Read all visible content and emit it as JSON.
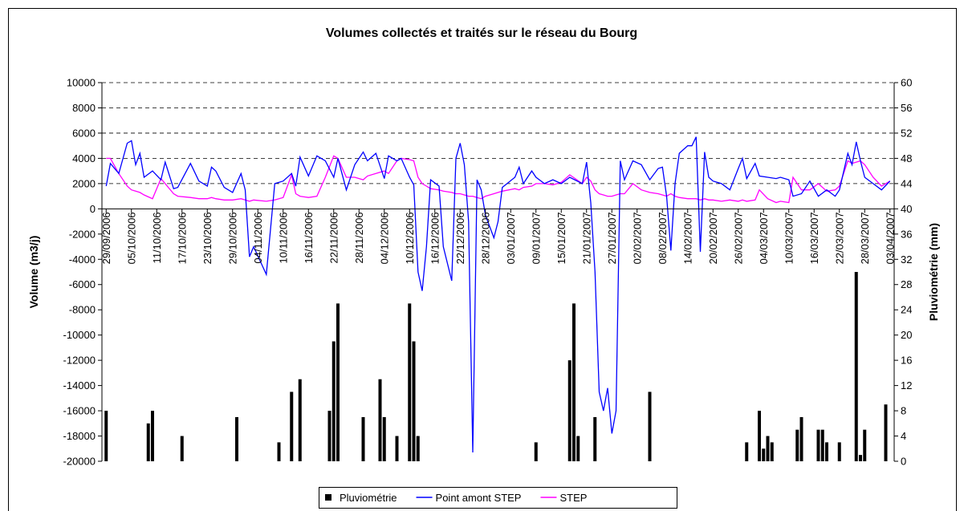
{
  "chart_data": {
    "type": "combo",
    "title": "Volumes collectés et traités sur le réseau du Bourg",
    "y_label": "Volume (m3/j)",
    "y2_label": "Pluviométrie (mm)",
    "x": [
      "29/09/2006",
      "30/09/2006",
      "02/10/2006",
      "04/10/2006",
      "05/10/2006",
      "06/10/2006",
      "07/10/2006",
      "08/10/2006",
      "10/10/2006",
      "12/10/2006",
      "13/10/2006",
      "15/10/2006",
      "16/10/2006",
      "19/10/2006",
      "21/10/2006",
      "23/10/2006",
      "24/10/2006",
      "25/10/2006",
      "27/10/2006",
      "29/10/2006",
      "31/10/2006",
      "01/11/2006",
      "02/11/2006",
      "03/11/2006",
      "06/11/2006",
      "08/11/2006",
      "10/11/2006",
      "12/11/2006",
      "13/11/2006",
      "14/11/2006",
      "16/11/2006",
      "18/11/2006",
      "20/11/2006",
      "22/11/2006",
      "23/11/2006",
      "25/11/2006",
      "27/11/2006",
      "29/11/2006",
      "30/11/2006",
      "02/12/2006",
      "04/12/2006",
      "05/12/2006",
      "07/12/2006",
      "08/12/2006",
      "10/12/2006",
      "11/12/2006",
      "12/12/2006",
      "13/12/2006",
      "14/12/2006",
      "15/12/2006",
      "17/12/2006",
      "18/12/2006",
      "20/12/2006",
      "21/12/2006",
      "22/12/2006",
      "23/12/2006",
      "24/12/2006",
      "25/12/2006",
      "26/12/2006",
      "27/12/2006",
      "28/12/2006",
      "30/12/2006",
      "31/12/2006",
      "01/01/2007",
      "04/01/2007",
      "05/01/2007",
      "06/01/2007",
      "08/01/2007",
      "09/01/2007",
      "11/01/2007",
      "13/01/2007",
      "15/01/2007",
      "17/01/2007",
      "20/01/2007",
      "21/01/2007",
      "22/01/2007",
      "23/01/2007",
      "24/01/2007",
      "25/01/2007",
      "26/01/2007",
      "27/01/2007",
      "28/01/2007",
      "29/01/2007",
      "30/01/2007",
      "01/02/2007",
      "03/02/2007",
      "05/02/2007",
      "07/02/2007",
      "08/02/2007",
      "09/02/2007",
      "10/02/2007",
      "11/02/2007",
      "12/02/2007",
      "14/02/2007",
      "15/02/2007",
      "16/02/2007",
      "17/02/2007",
      "18/02/2007",
      "19/02/2007",
      "20/02/2007",
      "22/02/2007",
      "24/02/2007",
      "26/02/2007",
      "27/02/2007",
      "28/02/2007",
      "02/03/2007",
      "03/03/2007",
      "05/03/2007",
      "07/03/2007",
      "08/03/2007",
      "10/03/2007",
      "11/03/2007",
      "13/03/2007",
      "15/03/2007",
      "17/03/2007",
      "19/03/2007",
      "21/03/2007",
      "22/03/2007",
      "24/03/2007",
      "25/03/2007",
      "26/03/2007",
      "27/03/2007",
      "28/03/2007",
      "30/03/2007",
      "01/04/2007",
      "03/04/2007"
    ],
    "series": [
      {
        "name": "Pluviométrie",
        "type": "bar",
        "axis": "y2",
        "color": "#000000",
        "x": [
          "29/09/2006",
          "09/10/2006",
          "10/10/2006",
          "17/10/2006",
          "30/10/2006",
          "09/11/2006",
          "12/11/2006",
          "14/11/2006",
          "21/11/2006",
          "22/11/2006",
          "23/11/2006",
          "29/11/2006",
          "03/12/2006",
          "04/12/2006",
          "07/12/2006",
          "10/12/2006",
          "11/12/2006",
          "12/12/2006",
          "09/01/2007",
          "17/01/2007",
          "18/01/2007",
          "19/01/2007",
          "23/01/2007",
          "05/02/2007",
          "28/02/2007",
          "03/03/2007",
          "04/03/2007",
          "05/03/2007",
          "06/03/2007",
          "12/03/2007",
          "13/03/2007",
          "17/03/2007",
          "18/03/2007",
          "19/03/2007",
          "22/03/2007",
          "26/03/2007",
          "27/03/2007",
          "28/03/2007",
          "02/04/2007"
        ],
        "values": [
          8,
          6,
          8,
          4,
          7,
          3,
          11,
          13,
          8,
          19,
          25,
          7,
          13,
          7,
          4,
          25,
          19,
          4,
          3,
          16,
          25,
          4,
          7,
          11,
          3,
          8,
          2,
          4,
          3,
          5,
          7,
          5,
          5,
          3,
          3,
          30,
          1,
          5,
          9
        ]
      },
      {
        "name": "Point amont STEP",
        "type": "line",
        "color": "#0000ff",
        "values": [
          1800,
          3600,
          2800,
          5200,
          5400,
          3500,
          4400,
          2500,
          3000,
          2300,
          3700,
          1600,
          1700,
          3600,
          2200,
          1800,
          3300,
          3000,
          1700,
          1300,
          2800,
          1500,
          -3800,
          -3000,
          -5200,
          2000,
          2200,
          2800,
          1800,
          4100,
          2600,
          4200,
          3800,
          2500,
          4000,
          1500,
          3500,
          4500,
          3800,
          4400,
          2400,
          4200,
          3800,
          4000,
          2500,
          1900,
          -5000,
          -6500,
          -3000,
          2300,
          1800,
          -3000,
          -5700,
          4000,
          5200,
          3500,
          -1000,
          -19300,
          2300,
          1500,
          -500,
          -2300,
          -1000,
          1700,
          2500,
          3300,
          2000,
          3000,
          2500,
          2000,
          2300,
          2000,
          2500,
          2000,
          3700,
          500,
          -5000,
          -14500,
          -16000,
          -14200,
          -17800,
          -16000,
          3800,
          2300,
          3800,
          3500,
          2300,
          3200,
          3300,
          1000,
          -3300,
          2000,
          4400,
          5000,
          5000,
          5700,
          -3400,
          4500,
          2500,
          2200,
          2000,
          1500,
          3200,
          4000,
          2400,
          3600,
          2600,
          2500,
          2400,
          2500,
          2300,
          1000,
          1200,
          2200,
          1000,
          1500,
          1000,
          1500,
          4400,
          3500,
          5300,
          3800,
          2500,
          2000,
          1500,
          2200
        ]
      },
      {
        "name": "STEP",
        "type": "line",
        "color": "#ff00ff",
        "values": [
          4000,
          4000,
          2800,
          1800,
          1500,
          1400,
          1300,
          1100,
          800,
          2400,
          2000,
          1200,
          1000,
          900,
          800,
          800,
          900,
          800,
          700,
          700,
          800,
          700,
          600,
          700,
          600,
          700,
          900,
          2700,
          1200,
          1000,
          900,
          1000,
          2500,
          4200,
          4000,
          2500,
          2500,
          2300,
          2600,
          2800,
          3000,
          2800,
          3800,
          4000,
          3900,
          3800,
          2500,
          2000,
          1800,
          1600,
          1500,
          1400,
          1300,
          1200,
          1200,
          1100,
          1000,
          1000,
          900,
          800,
          1000,
          1200,
          1300,
          1400,
          1600,
          1500,
          1700,
          1800,
          2000,
          2000,
          1900,
          2100,
          2700,
          2000,
          2500,
          2200,
          1500,
          1200,
          1100,
          1000,
          1000,
          1100,
          1200,
          1200,
          2000,
          1500,
          1300,
          1200,
          1100,
          1000,
          1200,
          1000,
          900,
          800,
          800,
          800,
          700,
          800,
          700,
          700,
          600,
          700,
          600,
          700,
          600,
          700,
          1500,
          800,
          500,
          600,
          500,
          2500,
          1500,
          1500,
          2000,
          1400,
          1500,
          1800,
          3800,
          3600,
          3700,
          3800,
          3500,
          2500,
          1800,
          2200
        ]
      }
    ],
    "xlim": [
      "28/09/2006",
      "04/04/2007"
    ],
    "xticks": [
      "29/09/2006",
      "05/10/2006",
      "11/10/2006",
      "17/10/2006",
      "23/10/2006",
      "29/10/2006",
      "04/11/2006",
      "10/11/2006",
      "16/11/2006",
      "22/11/2006",
      "28/11/2006",
      "04/12/2006",
      "10/12/2006",
      "16/12/2006",
      "22/12/2006",
      "28/12/2006",
      "03/01/2007",
      "09/01/2007",
      "15/01/2007",
      "21/01/2007",
      "27/01/2007",
      "02/02/2007",
      "08/02/2007",
      "14/02/2007",
      "20/02/2007",
      "26/02/2007",
      "04/03/2007",
      "10/03/2007",
      "16/03/2007",
      "22/03/2007",
      "28/03/2007",
      "03/04/2007"
    ],
    "ylim": [
      -20000,
      10000
    ],
    "yticks": [
      -20000,
      -18000,
      -16000,
      -14000,
      -12000,
      -10000,
      -8000,
      -6000,
      -4000,
      -2000,
      0,
      2000,
      4000,
      6000,
      8000,
      10000
    ],
    "y2lim": [
      0,
      60
    ],
    "y2ticks": [
      0,
      4,
      8,
      12,
      16,
      20,
      24,
      28,
      32,
      36,
      40,
      44,
      48,
      52,
      56,
      60
    ],
    "grid": true,
    "legend": "bottom"
  }
}
